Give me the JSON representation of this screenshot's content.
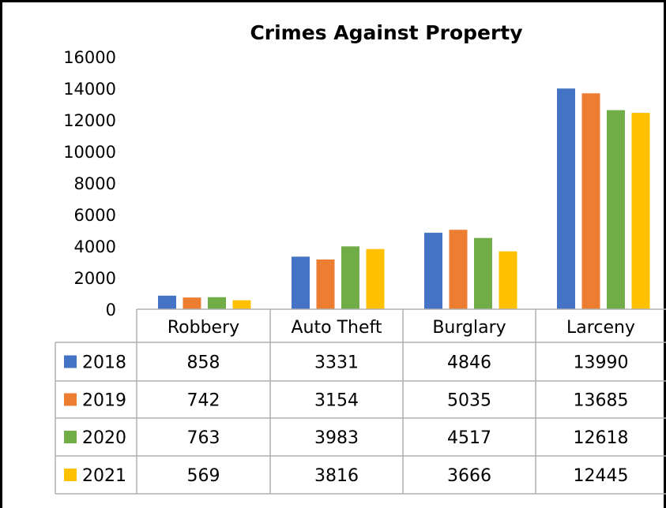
{
  "chart_data": {
    "type": "bar",
    "title": "Crimes Against Property",
    "categories": [
      "Robbery",
      "Auto Theft",
      "Burglary",
      "Larceny"
    ],
    "series": [
      {
        "name": "2018",
        "color": "#4472c4",
        "values": [
          858,
          3331,
          4846,
          13990
        ]
      },
      {
        "name": "2019",
        "color": "#ed7d31",
        "values": [
          742,
          3154,
          5035,
          13685
        ]
      },
      {
        "name": "2020",
        "color": "#70ad47",
        "values": [
          763,
          3983,
          4517,
          12618
        ]
      },
      {
        "name": "2021",
        "color": "#ffc000",
        "values": [
          569,
          3816,
          3666,
          12445
        ]
      }
    ],
    "yticks": [
      "0",
      "2000",
      "4000",
      "6000",
      "8000",
      "10000",
      "12000",
      "14000",
      "16000"
    ],
    "ylim": [
      0,
      16000
    ],
    "grid": false,
    "legend": "data-table",
    "table": {
      "rows": [
        [
          "858",
          "3331",
          "4846",
          "13990"
        ],
        [
          "742",
          "3154",
          "5035",
          "13685"
        ],
        [
          "763",
          "3983",
          "4517",
          "12618"
        ],
        [
          "569",
          "3816",
          "3666",
          "12445"
        ]
      ]
    }
  }
}
